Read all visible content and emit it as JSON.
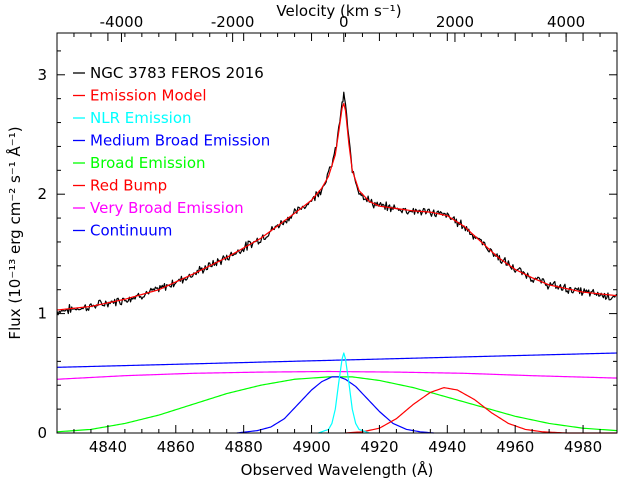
{
  "chart_data": {
    "type": "line",
    "title": "",
    "xlabel": "Observed Wavelength (Å)",
    "ylabel": "Flux (10⁻¹³ erg cm⁻² s⁻¹ Å⁻¹)",
    "top_xlabel": "Velocity (km s⁻¹)",
    "xlim": [
      4825,
      4990
    ],
    "ylim": [
      0,
      3.35
    ],
    "x_ticks": [
      4840,
      4860,
      4880,
      4900,
      4920,
      4940,
      4960,
      4980
    ],
    "y_ticks": [
      0,
      1,
      2,
      3
    ],
    "top_x_ticks": [
      -4000,
      -2000,
      0,
      2000,
      4000
    ],
    "velocity_zero_wavelength": 4909.5,
    "legend_position": "top-left",
    "grid": false,
    "series": [
      {
        "name": "NGC 3783 FEROS 2016",
        "color": "#000000",
        "style": "noisy",
        "points": [
          [
            4825,
            1.02
          ],
          [
            4835,
            1.06
          ],
          [
            4845,
            1.12
          ],
          [
            4855,
            1.2
          ],
          [
            4865,
            1.33
          ],
          [
            4875,
            1.47
          ],
          [
            4885,
            1.63
          ],
          [
            4895,
            1.84
          ],
          [
            4900,
            1.95
          ],
          [
            4903,
            2.05
          ],
          [
            4905,
            2.17
          ],
          [
            4907,
            2.35
          ],
          [
            4908,
            2.55
          ],
          [
            4909,
            2.76
          ],
          [
            4909.5,
            2.82
          ],
          [
            4910,
            2.76
          ],
          [
            4911,
            2.45
          ],
          [
            4912,
            2.2
          ],
          [
            4914,
            2.03
          ],
          [
            4917,
            1.94
          ],
          [
            4920,
            1.9
          ],
          [
            4925,
            1.88
          ],
          [
            4930,
            1.86
          ],
          [
            4935,
            1.85
          ],
          [
            4940,
            1.82
          ],
          [
            4945,
            1.73
          ],
          [
            4950,
            1.6
          ],
          [
            4955,
            1.47
          ],
          [
            4960,
            1.37
          ],
          [
            4965,
            1.3
          ],
          [
            4970,
            1.24
          ],
          [
            4980,
            1.18
          ],
          [
            4990,
            1.14
          ]
        ]
      },
      {
        "name": "Emission Model",
        "color": "#ff0000",
        "points": [
          [
            4825,
            1.03
          ],
          [
            4835,
            1.06
          ],
          [
            4845,
            1.12
          ],
          [
            4855,
            1.2
          ],
          [
            4865,
            1.33
          ],
          [
            4875,
            1.47
          ],
          [
            4885,
            1.63
          ],
          [
            4895,
            1.84
          ],
          [
            4900,
            1.95
          ],
          [
            4903,
            2.05
          ],
          [
            4905,
            2.15
          ],
          [
            4907,
            2.33
          ],
          [
            4908,
            2.52
          ],
          [
            4909,
            2.72
          ],
          [
            4909.5,
            2.76
          ],
          [
            4910,
            2.7
          ],
          [
            4911,
            2.42
          ],
          [
            4912,
            2.2
          ],
          [
            4914,
            2.03
          ],
          [
            4917,
            1.94
          ],
          [
            4920,
            1.9
          ],
          [
            4925,
            1.88
          ],
          [
            4930,
            1.86
          ],
          [
            4935,
            1.85
          ],
          [
            4940,
            1.82
          ],
          [
            4945,
            1.73
          ],
          [
            4950,
            1.6
          ],
          [
            4955,
            1.47
          ],
          [
            4960,
            1.37
          ],
          [
            4965,
            1.3
          ],
          [
            4970,
            1.24
          ],
          [
            4980,
            1.18
          ],
          [
            4990,
            1.15
          ]
        ]
      },
      {
        "name": "NLR Emission",
        "color": "#00ffff",
        "points": [
          [
            4902,
            0.0
          ],
          [
            4905,
            0.03
          ],
          [
            4906,
            0.08
          ],
          [
            4907,
            0.2
          ],
          [
            4908,
            0.42
          ],
          [
            4909,
            0.62
          ],
          [
            4909.5,
            0.67
          ],
          [
            4910,
            0.62
          ],
          [
            4911,
            0.42
          ],
          [
            4912,
            0.2
          ],
          [
            4913,
            0.08
          ],
          [
            4914,
            0.03
          ],
          [
            4917,
            0.0
          ]
        ]
      },
      {
        "name": "Medium Broad Emission",
        "color": "#0000ff",
        "points": [
          [
            4878,
            0.0
          ],
          [
            4884,
            0.02
          ],
          [
            4888,
            0.05
          ],
          [
            4892,
            0.12
          ],
          [
            4896,
            0.24
          ],
          [
            4900,
            0.36
          ],
          [
            4903,
            0.43
          ],
          [
            4906,
            0.47
          ],
          [
            4908,
            0.47
          ],
          [
            4910,
            0.45
          ],
          [
            4913,
            0.39
          ],
          [
            4916,
            0.3
          ],
          [
            4920,
            0.18
          ],
          [
            4924,
            0.08
          ],
          [
            4928,
            0.03
          ],
          [
            4932,
            0.01
          ],
          [
            4936,
            0.0
          ]
        ]
      },
      {
        "name": "Broad Emission",
        "color": "#00ff00",
        "points": [
          [
            4825,
            0.01
          ],
          [
            4835,
            0.03
          ],
          [
            4845,
            0.08
          ],
          [
            4855,
            0.15
          ],
          [
            4865,
            0.24
          ],
          [
            4875,
            0.33
          ],
          [
            4885,
            0.4
          ],
          [
            4895,
            0.45
          ],
          [
            4905,
            0.47
          ],
          [
            4912,
            0.47
          ],
          [
            4920,
            0.44
          ],
          [
            4930,
            0.38
          ],
          [
            4940,
            0.3
          ],
          [
            4950,
            0.22
          ],
          [
            4960,
            0.14
          ],
          [
            4970,
            0.08
          ],
          [
            4980,
            0.04
          ],
          [
            4990,
            0.02
          ]
        ]
      },
      {
        "name": "Red Bump",
        "color": "#ff0000",
        "points": [
          [
            4910,
            0.0
          ],
          [
            4915,
            0.01
          ],
          [
            4920,
            0.04
          ],
          [
            4925,
            0.12
          ],
          [
            4930,
            0.24
          ],
          [
            4935,
            0.34
          ],
          [
            4939,
            0.38
          ],
          [
            4943,
            0.36
          ],
          [
            4948,
            0.28
          ],
          [
            4953,
            0.17
          ],
          [
            4958,
            0.08
          ],
          [
            4963,
            0.03
          ],
          [
            4968,
            0.01
          ],
          [
            4975,
            0.0
          ],
          [
            4990,
            0.0
          ]
        ]
      },
      {
        "name": "Very Broad Emission",
        "color": "#ff00ff",
        "points": [
          [
            4825,
            0.45
          ],
          [
            4845,
            0.48
          ],
          [
            4865,
            0.5
          ],
          [
            4885,
            0.51
          ],
          [
            4905,
            0.515
          ],
          [
            4925,
            0.51
          ],
          [
            4945,
            0.5
          ],
          [
            4965,
            0.48
          ],
          [
            4990,
            0.46
          ]
        ]
      },
      {
        "name": "Continuum",
        "color": "#0000ff",
        "points": [
          [
            4825,
            0.55
          ],
          [
            4990,
            0.67
          ]
        ]
      }
    ]
  }
}
